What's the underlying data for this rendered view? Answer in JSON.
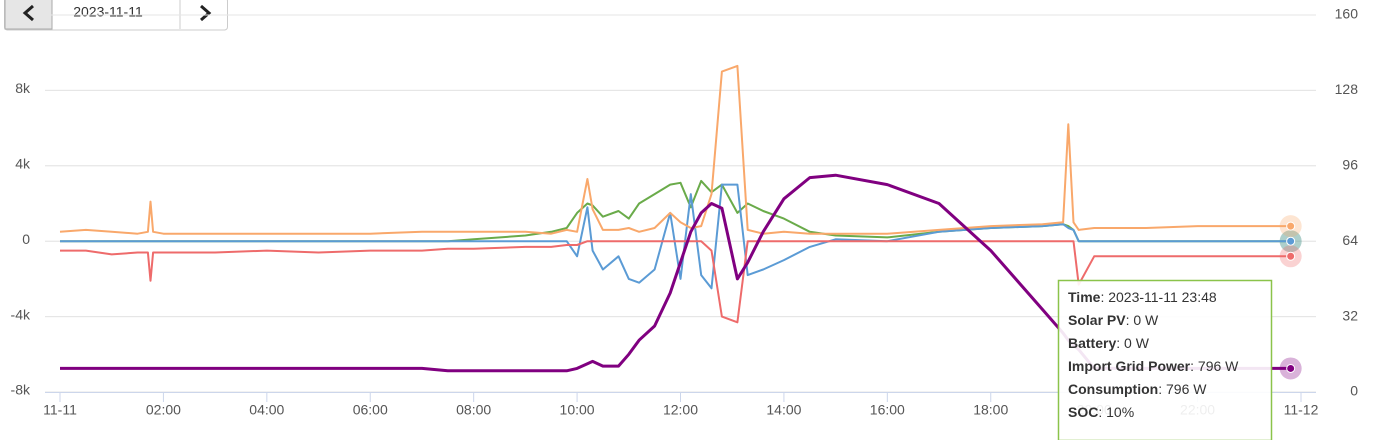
{
  "date_picker": {
    "date": "2023-11-11"
  },
  "chart_data": {
    "type": "line",
    "x": [
      0,
      0.5,
      1,
      1.5,
      1.7,
      1.75,
      1.8,
      2,
      3,
      4,
      5,
      6,
      7,
      7.5,
      8,
      9,
      9.5,
      9.8,
      10,
      10.2,
      10.3,
      10.5,
      10.8,
      11,
      11.2,
      11.5,
      11.8,
      12,
      12.2,
      12.4,
      12.6,
      12.8,
      13.1,
      13.3,
      13.6,
      14,
      14.5,
      15,
      16,
      17,
      18,
      19,
      19.4,
      19.5,
      19.6,
      19.7,
      20,
      21,
      22,
      23,
      23.8
    ],
    "xlim": [
      0,
      24
    ],
    "xticks": [
      {
        "value": 0,
        "label": "11-11"
      },
      {
        "value": 2,
        "label": "02:00"
      },
      {
        "value": 4,
        "label": "04:00"
      },
      {
        "value": 6,
        "label": "06:00"
      },
      {
        "value": 8,
        "label": "08:00"
      },
      {
        "value": 10,
        "label": "10:00"
      },
      {
        "value": 12,
        "label": "12:00"
      },
      {
        "value": 14,
        "label": "14:00"
      },
      {
        "value": 16,
        "label": "16:00"
      },
      {
        "value": 18,
        "label": "18:00"
      },
      {
        "value": 20,
        "label": "20:00"
      },
      {
        "value": 22,
        "label": "22:00"
      },
      {
        "value": 24,
        "label": "11-12"
      }
    ],
    "ylim": [
      -8000,
      12000
    ],
    "yticks": [
      {
        "value": -8000,
        "label": "-8k"
      },
      {
        "value": -4000,
        "label": "-4k"
      },
      0,
      {
        "value": 4000,
        "label": "4k"
      },
      {
        "value": 8000,
        "label": "8k"
      }
    ],
    "y2lim": [
      0,
      160
    ],
    "y2ticks": [
      0,
      32,
      64,
      96,
      128,
      160
    ],
    "grid": true,
    "series": [
      {
        "name": "Solar PV",
        "color": "#6aab4a",
        "values": [
          0,
          0,
          0,
          0,
          0,
          0,
          0,
          0,
          0,
          0,
          0,
          0,
          0,
          0,
          100,
          300,
          500,
          700,
          1500,
          2000,
          1900,
          1300,
          1600,
          1200,
          2000,
          2500,
          3000,
          3100,
          1800,
          3200,
          2600,
          3000,
          1500,
          2000,
          1600,
          1200,
          500,
          300,
          200,
          500,
          700,
          800,
          900,
          800,
          600,
          0,
          0,
          0,
          0,
          0,
          0
        ]
      },
      {
        "name": "Battery",
        "color": "#5b9bd5",
        "values": [
          0,
          0,
          0,
          0,
          0,
          0,
          0,
          0,
          0,
          0,
          0,
          0,
          0,
          0,
          0,
          0,
          0,
          0,
          -800,
          1800,
          -500,
          -1500,
          -800,
          -2000,
          -2200,
          -1500,
          1500,
          -2000,
          2500,
          -1800,
          -2500,
          3000,
          3000,
          -1800,
          -1500,
          -1000,
          -300,
          100,
          0,
          500,
          700,
          800,
          900,
          700,
          600,
          0,
          0,
          0,
          0,
          0,
          0
        ]
      },
      {
        "name": "Import Grid Power",
        "color": "#ee6b6b",
        "values": [
          -500,
          -500,
          -700,
          -600,
          -600,
          -2100,
          -600,
          -600,
          -600,
          -500,
          -600,
          -500,
          -500,
          -400,
          -400,
          -300,
          -300,
          -200,
          -200,
          0,
          0,
          0,
          0,
          0,
          0,
          0,
          0,
          0,
          0,
          0,
          -500,
          -4000,
          -4300,
          0,
          0,
          0,
          0,
          0,
          0,
          0,
          0,
          0,
          0,
          0,
          0,
          -2300,
          -800,
          -800,
          -800,
          -800,
          -800
        ]
      },
      {
        "name": "Consumption",
        "color": "#f9a86b",
        "values": [
          500,
          600,
          500,
          400,
          500,
          2100,
          500,
          400,
          400,
          400,
          400,
          400,
          500,
          500,
          500,
          500,
          400,
          600,
          500,
          3300,
          1700,
          600,
          600,
          700,
          500,
          700,
          1500,
          1000,
          700,
          800,
          2500,
          9000,
          9300,
          600,
          400,
          500,
          400,
          400,
          400,
          600,
          800,
          900,
          1000,
          6200,
          1000,
          600,
          700,
          700,
          800,
          800,
          800
        ]
      },
      {
        "name": "SOC",
        "color": "#800080",
        "axis": "y2",
        "values": [
          10,
          10,
          10,
          10,
          10,
          10,
          10,
          10,
          10,
          10,
          10,
          10,
          10,
          9,
          9,
          9,
          9,
          9,
          10,
          12,
          13,
          11,
          11,
          16,
          22,
          28,
          42,
          55,
          68,
          76,
          80,
          78,
          48,
          55,
          68,
          82,
          91,
          92,
          88,
          80,
          60,
          35,
          25,
          22,
          20,
          18,
          10,
          10,
          10,
          10,
          10
        ]
      }
    ],
    "tooltip": {
      "time_label": "Time",
      "time": "2023-11-11 23:48",
      "rows": [
        {
          "label": "Solar PV",
          "value": "0 W"
        },
        {
          "label": "Battery",
          "value": "0 W"
        },
        {
          "label": "Import Grid Power",
          "value": "796 W"
        },
        {
          "label": "Consumption",
          "value": "796 W"
        },
        {
          "label": "SOC",
          "value": "10%"
        }
      ]
    }
  }
}
